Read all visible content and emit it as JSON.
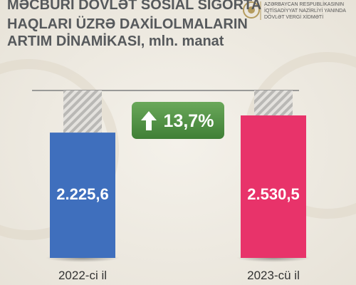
{
  "header": {
    "logo_lines": [
      "AZƏRBAYCAN RESPUBLİKASININ",
      "İQTİSADİYYAT NAZİRLİYİ YANINDA",
      "DÖVLƏT VERGİ XİDMƏTİ"
    ]
  },
  "chart_data": {
    "type": "bar",
    "title": [
      "MƏCBURİ DÖVLƏT SOSİAL SIĞORTA",
      "HAQLARI ÜZRƏ DAXİLOLMALARIN",
      "ARTIM DİNAMİKASI, mln. manat"
    ],
    "categories": [
      "2022-ci il",
      "2023-cü il"
    ],
    "values": [
      2225.6,
      2530.5
    ],
    "value_labels": [
      "2.225,6",
      "2.530,5"
    ],
    "colors": [
      "#3f6fbd",
      "#e8336a"
    ],
    "annotation": "13,7%"
  }
}
